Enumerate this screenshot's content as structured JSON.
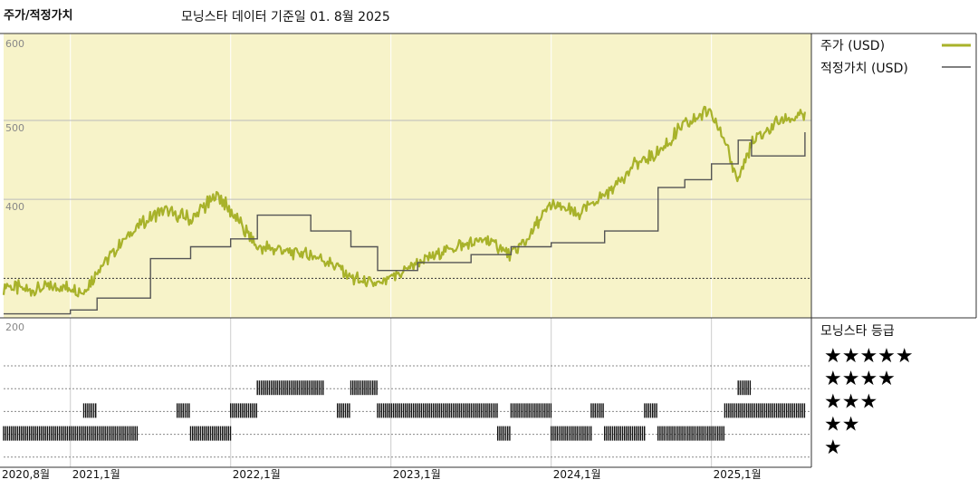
{
  "chart_data": {
    "type": "line",
    "title": "주가/적정가치",
    "subtitle": "모닝스타 데이터 기준일 01. 8월 2025",
    "y_ticks": [
      200,
      400,
      500,
      600
    ],
    "x_ticks": [
      "2020,8월",
      "2021,1월",
      "2022,1월",
      "2023,1월",
      "2024,1월",
      "2025,1월"
    ],
    "ylim": [
      250,
      610
    ],
    "legend": {
      "placement": "right"
    },
    "colors": {
      "price": "#a8b22a",
      "fair": "#555555",
      "bg": "#f7f3c9",
      "rating": "#111111"
    },
    "series": [
      {
        "name": "주가 (USD)",
        "x": [
          "2020-08",
          "2020-10",
          "2020-12",
          "2021-02",
          "2021-04",
          "2021-06",
          "2021-08",
          "2021-10",
          "2021-12",
          "2022-01",
          "2022-03",
          "2022-05",
          "2022-07",
          "2022-09",
          "2022-10",
          "2022-12",
          "2023-01",
          "2023-03",
          "2023-05",
          "2023-07",
          "2023-08",
          "2023-10",
          "2023-11",
          "2024-01",
          "2024-03",
          "2024-05",
          "2024-07",
          "2024-09",
          "2024-11",
          "2025-01",
          "2025-03",
          "2025-04",
          "2025-06",
          "2025-08"
        ],
        "values": [
          290,
          285,
          290,
          285,
          330,
          365,
          385,
          375,
          405,
          385,
          340,
          335,
          330,
          315,
          300,
          290,
          300,
          320,
          335,
          345,
          350,
          330,
          345,
          395,
          380,
          405,
          440,
          460,
          495,
          515,
          425,
          470,
          500,
          505
        ]
      },
      {
        "name": "적정가치 (USD)",
        "x": [
          "2020-08",
          "2021-01",
          "2021-03",
          "2021-07",
          "2021-10",
          "2022-01",
          "2022-03",
          "2022-07",
          "2022-10",
          "2022-12",
          "2023-03",
          "2023-07",
          "2023-10",
          "2024-01",
          "2024-05",
          "2024-09",
          "2024-11",
          "2025-01",
          "2025-03",
          "2025-04",
          "2025-08"
        ],
        "values": [
          255,
          260,
          275,
          325,
          340,
          350,
          380,
          360,
          340,
          310,
          320,
          330,
          340,
          345,
          360,
          415,
          425,
          445,
          475,
          455,
          485
        ]
      }
    ],
    "rating": {
      "title": "모닝스타 등급",
      "levels": [
        "★★★★★",
        "★★★★",
        "★★★",
        "★★",
        "★"
      ],
      "segments": [
        {
          "start": "2020-08",
          "end": "2021-06",
          "stars": 2
        },
        {
          "start": "2021-02",
          "end": "2021-03",
          "stars": 3
        },
        {
          "start": "2021-09",
          "end": "2021-10",
          "stars": 3
        },
        {
          "start": "2021-10",
          "end": "2022-01",
          "stars": 2
        },
        {
          "start": "2022-01",
          "end": "2022-03",
          "stars": 3
        },
        {
          "start": "2022-03",
          "end": "2022-08",
          "stars": 4
        },
        {
          "start": "2022-09",
          "end": "2022-10",
          "stars": 3
        },
        {
          "start": "2022-10",
          "end": "2022-12",
          "stars": 4
        },
        {
          "start": "2022-12",
          "end": "2023-09",
          "stars": 3
        },
        {
          "start": "2023-09",
          "end": "2023-10",
          "stars": 2
        },
        {
          "start": "2023-10",
          "end": "2024-01",
          "stars": 3
        },
        {
          "start": "2024-01",
          "end": "2024-04",
          "stars": 2
        },
        {
          "start": "2024-04",
          "end": "2024-05",
          "stars": 3
        },
        {
          "start": "2024-05",
          "end": "2024-08",
          "stars": 2
        },
        {
          "start": "2024-08",
          "end": "2024-09",
          "stars": 3
        },
        {
          "start": "2024-09",
          "end": "2025-02",
          "stars": 2
        },
        {
          "start": "2025-02",
          "end": "2025-08",
          "stars": 3
        },
        {
          "start": "2025-03",
          "end": "2025-04",
          "stars": 4
        }
      ]
    }
  }
}
